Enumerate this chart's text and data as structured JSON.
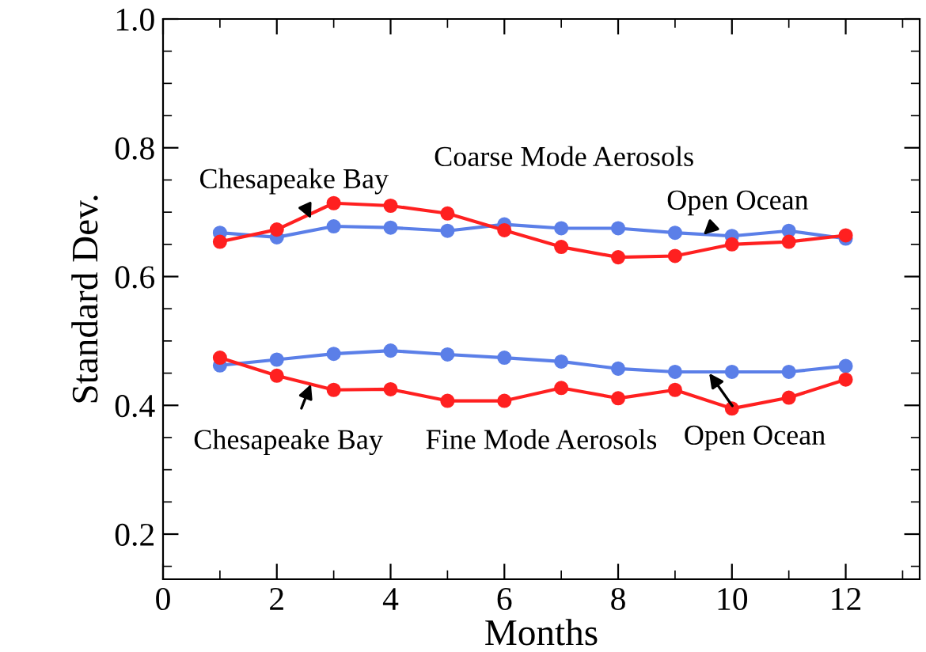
{
  "chart_data": {
    "type": "line",
    "xlabel": "Months",
    "ylabel": "Standard Dev.",
    "x": [
      1,
      2,
      3,
      4,
      5,
      6,
      7,
      8,
      9,
      10,
      11,
      12
    ],
    "xlim": [
      0,
      13.3
    ],
    "xticks": [
      0,
      2,
      4,
      6,
      8,
      10,
      12
    ],
    "ylim": [
      0.13,
      1.0
    ],
    "yticks": [
      {
        "value": 0.2,
        "label": "0.2"
      },
      {
        "value": 0.4,
        "label": "0.4"
      },
      {
        "value": 0.6,
        "label": "0.6"
      },
      {
        "value": 0.8,
        "label": "0.8"
      },
      {
        "value": 1.0,
        "label": "1.0"
      }
    ],
    "grid": false,
    "legend": false,
    "marker": "circle",
    "line_style": "solid",
    "series": [
      {
        "color": "#5b7fe8",
        "values": [
          0.668,
          0.661,
          0.678,
          0.676,
          0.671,
          0.681,
          0.675,
          0.675,
          0.668,
          0.663,
          0.671,
          0.659
        ]
      },
      {
        "color": "#ff2020",
        "values": [
          0.654,
          0.673,
          0.714,
          0.71,
          0.698,
          0.672,
          0.646,
          0.63,
          0.632,
          0.65,
          0.654,
          0.664
        ]
      },
      {
        "color": "#5b7fe8",
        "values": [
          0.462,
          0.471,
          0.48,
          0.485,
          0.479,
          0.474,
          0.468,
          0.457,
          0.452,
          0.452,
          0.452,
          0.461
        ]
      },
      {
        "color": "#ff2020",
        "values": [
          0.474,
          0.446,
          0.424,
          0.425,
          0.407,
          0.407,
          0.427,
          0.411,
          0.424,
          0.395,
          0.412,
          0.44
        ]
      }
    ],
    "annotations": [
      "Coarse Mode Aerosols",
      "Fine Mode Aerosols",
      {
        "text": "Chesapeake Bay",
        "x": 2.6,
        "y": 0.69
      },
      {
        "text": "Open Ocean",
        "x": 9.5,
        "y": 0.665
      },
      {
        "text": "Chesapeake Bay",
        "x": 2.6,
        "y": 0.433
      },
      {
        "text": "Open Ocean",
        "x": 9.6,
        "y": 0.45
      }
    ]
  }
}
